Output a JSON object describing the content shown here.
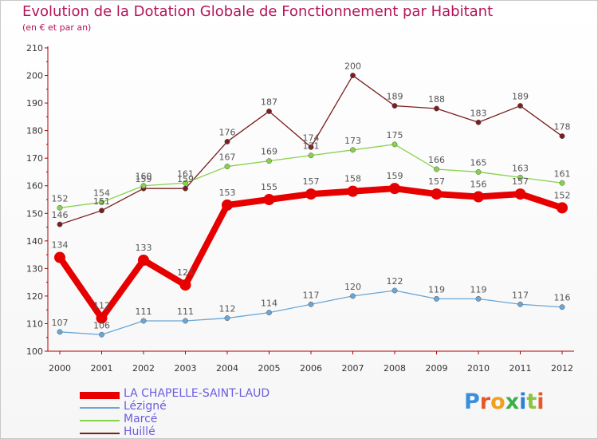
{
  "header": {
    "title": "Evolution de la Dotation Globale de Fonctionnement par Habitant",
    "subtitle": "(en € et par an)"
  },
  "logo": {
    "letters": [
      "P",
      "r",
      "o",
      "x",
      "i",
      "t",
      "i"
    ],
    "colors": [
      "#3b8fd9",
      "#e8572a",
      "#f2a01c",
      "#3bb04a",
      "#2f7fd4",
      "#8ac43f",
      "#e35a2e"
    ]
  },
  "chart_data": {
    "type": "line",
    "title": "Evolution de la Dotation Globale de Fonctionnement par Habitant",
    "subtitle": "(en € et par an)",
    "x": [
      2000,
      2001,
      2002,
      2003,
      2004,
      2005,
      2006,
      2007,
      2008,
      2009,
      2010,
      2011,
      2012
    ],
    "ylim": [
      100,
      210
    ],
    "yticks": [
      100,
      110,
      120,
      130,
      140,
      150,
      160,
      170,
      180,
      190,
      200,
      210
    ],
    "grid": false,
    "legend_position": "bottom-left",
    "series": [
      {
        "name": "Huillé",
        "color": "#7a1f1f",
        "emphasis": false,
        "values": [
          146,
          151,
          159,
          159,
          176,
          187,
          174,
          200,
          189,
          188,
          183,
          189,
          178
        ]
      },
      {
        "name": "Marcé",
        "color": "#86d24a",
        "emphasis": false,
        "values": [
          152,
          154,
          160,
          161,
          167,
          169,
          171,
          173,
          175,
          166,
          165,
          163,
          161
        ]
      },
      {
        "name": "Lézigné",
        "color": "#6aa6d6",
        "emphasis": false,
        "values": [
          107,
          106,
          111,
          111,
          112,
          114,
          117,
          120,
          122,
          119,
          119,
          117,
          116
        ]
      },
      {
        "name": "LA CHAPELLE-SAINT-LAUD",
        "color": "#e60000",
        "emphasis": true,
        "values": [
          134,
          112,
          133,
          124,
          153,
          155,
          157,
          158,
          159,
          157,
          156,
          157,
          152
        ]
      }
    ],
    "legend_order": [
      "LA CHAPELLE-SAINT-LAUD",
      "Lézigné",
      "Marcé",
      "Huillé"
    ],
    "legend_label_colors": {
      "LA CHAPELLE-SAINT-LAUD": "#6b5de0",
      "Lézigné": "#6b5de0",
      "Marcé": "#6b5de0",
      "Huillé": "#6b5de0"
    }
  }
}
